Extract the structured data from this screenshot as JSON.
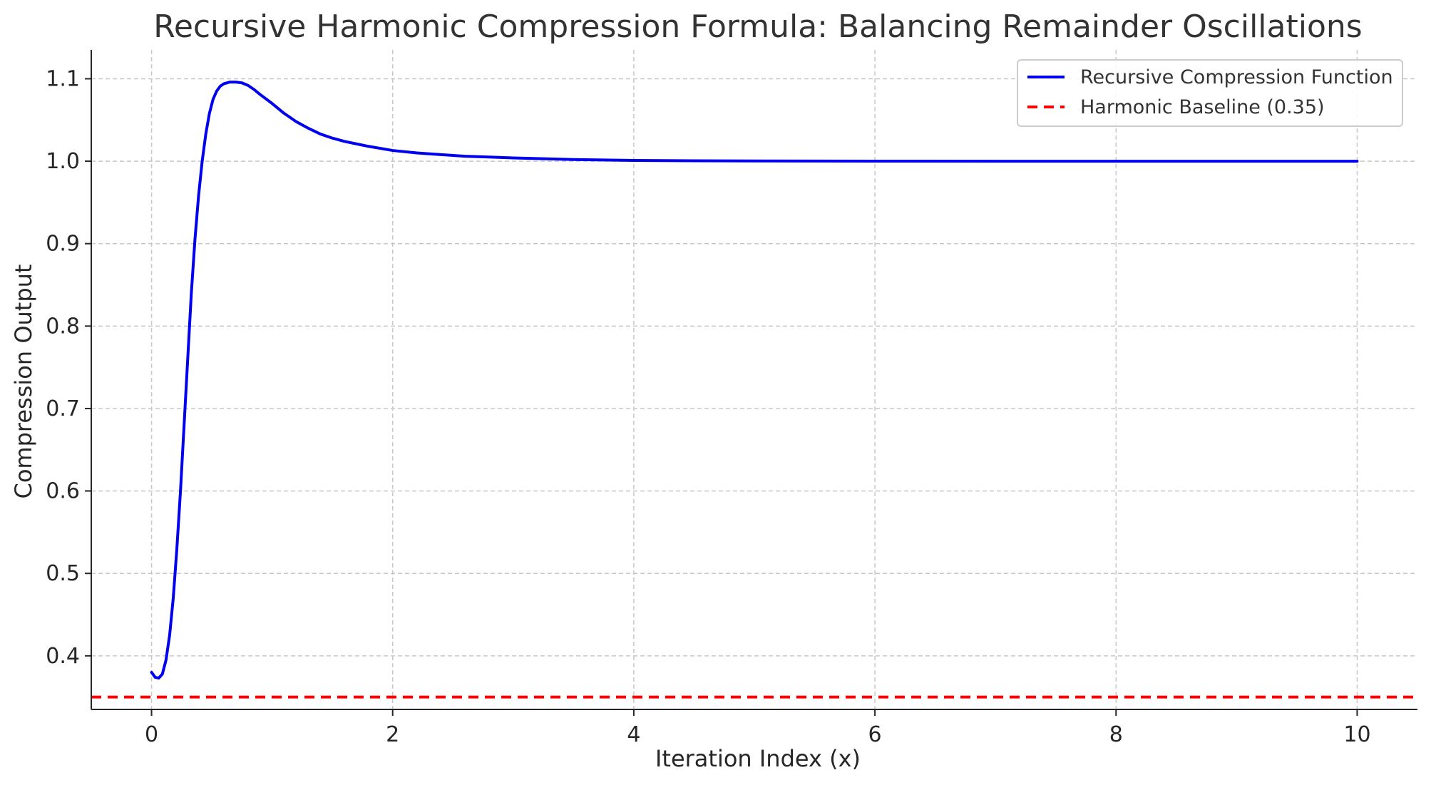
{
  "chart_data": {
    "type": "line",
    "title": "Recursive Harmonic Compression Formula: Balancing Remainder Oscillations",
    "xlabel": "Iteration Index (x)",
    "ylabel": "Compression Output",
    "xlim": [
      -0.5,
      10.5
    ],
    "ylim": [
      0.335,
      1.135
    ],
    "xticks": [
      0,
      2,
      4,
      6,
      8,
      10
    ],
    "yticks": [
      0.4,
      0.5,
      0.6,
      0.7,
      0.8,
      0.9,
      1.0,
      1.1
    ],
    "xtick_labels": [
      "0",
      "2",
      "4",
      "6",
      "8",
      "10"
    ],
    "ytick_labels": [
      "0.4",
      "0.5",
      "0.6",
      "0.7",
      "0.8",
      "0.9",
      "1.0",
      "1.1"
    ],
    "grid": true,
    "legend_position": "top-right",
    "series": [
      {
        "name": "Recursive Compression Function",
        "color": "#0000ee",
        "style": "solid",
        "x": [
          0,
          0.03,
          0.06,
          0.09,
          0.12,
          0.15,
          0.18,
          0.21,
          0.24,
          0.27,
          0.3,
          0.33,
          0.36,
          0.39,
          0.42,
          0.45,
          0.48,
          0.51,
          0.54,
          0.57,
          0.6,
          0.65,
          0.7,
          0.75,
          0.8,
          0.85,
          0.9,
          1.0,
          1.1,
          1.2,
          1.3,
          1.4,
          1.5,
          1.6,
          1.8,
          2.0,
          2.2,
          2.4,
          2.6,
          2.8,
          3.0,
          3.25,
          3.5,
          3.75,
          4.0,
          4.5,
          5.0,
          5.5,
          6.0,
          7.0,
          8.0,
          9.0,
          10.0
        ],
        "y": [
          0.38,
          0.374,
          0.373,
          0.378,
          0.395,
          0.425,
          0.47,
          0.53,
          0.6,
          0.68,
          0.76,
          0.84,
          0.905,
          0.958,
          1.0,
          1.033,
          1.058,
          1.075,
          1.085,
          1.091,
          1.094,
          1.096,
          1.096,
          1.095,
          1.092,
          1.087,
          1.081,
          1.07,
          1.058,
          1.048,
          1.04,
          1.033,
          1.028,
          1.024,
          1.018,
          1.013,
          1.01,
          1.008,
          1.006,
          1.005,
          1.004,
          1.003,
          1.002,
          1.0015,
          1.001,
          1.0005,
          1.0003,
          1.0002,
          1.0001,
          1.0,
          1.0,
          1.0,
          1.0
        ]
      },
      {
        "name": "Harmonic Baseline (0.35)",
        "color": "#ff0000",
        "style": "dashed",
        "y_constant": 0.35
      }
    ]
  }
}
